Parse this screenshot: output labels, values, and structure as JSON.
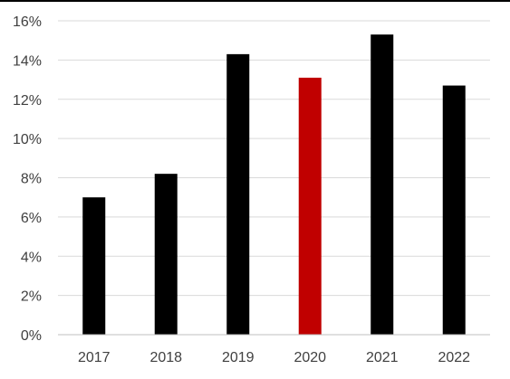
{
  "chart_data": {
    "type": "bar",
    "categories": [
      "2017",
      "2018",
      "2019",
      "2020",
      "2021",
      "2022"
    ],
    "values": [
      7.0,
      8.2,
      14.3,
      13.1,
      15.3,
      12.7
    ],
    "ylim": [
      0,
      16
    ],
    "yticks": [
      0,
      2,
      4,
      6,
      8,
      10,
      12,
      14,
      16
    ],
    "ytick_labels": [
      "0%",
      "2%",
      "4%",
      "6%",
      "8%",
      "10%",
      "12%",
      "14%",
      "16%"
    ],
    "title": "",
    "xlabel": "",
    "ylabel": "",
    "grid": true,
    "colors": {
      "default_bar": "#000000",
      "highlight_bar": "#C00000",
      "grid": "#D9D9D9",
      "axis": "#BFBFBF",
      "tick_text": "#404040"
    },
    "highlight_category": "2020"
  }
}
